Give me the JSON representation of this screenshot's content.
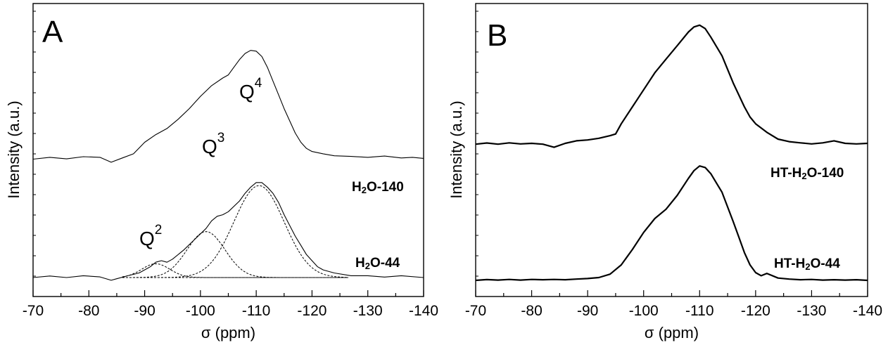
{
  "chart_data": [
    {
      "panel": "A",
      "type": "line",
      "xlabel": "σ (ppm)",
      "ylabel": "Intensity (a.u.)",
      "xlim": [
        -70,
        -140
      ],
      "x_ticks": [
        "-70",
        "-80",
        "-90",
        "-100",
        "-110",
        "-120",
        "-130",
        "-140"
      ],
      "series": [
        {
          "name_parts": [
            "H",
            "2",
            "O-140"
          ],
          "style": "thin-solid",
          "points": [
            [
              -70,
              0.25
            ],
            [
              -73,
              0.262
            ],
            [
              -76,
              0.252
            ],
            [
              -79,
              0.266
            ],
            [
              -82,
              0.262
            ],
            [
              -84,
              0.23
            ],
            [
              -86,
              0.258
            ],
            [
              -88,
              0.285
            ],
            [
              -90,
              0.36
            ],
            [
              -92,
              0.41
            ],
            [
              -94,
              0.45
            ],
            [
              -96,
              0.51
            ],
            [
              -98,
              0.58
            ],
            [
              -100,
              0.66
            ],
            [
              -102,
              0.73
            ],
            [
              -104,
              0.78
            ],
            [
              -105,
              0.8
            ],
            [
              -106,
              0.85
            ],
            [
              -107,
              0.9
            ],
            [
              -108,
              0.94
            ],
            [
              -109,
              0.96
            ],
            [
              -110,
              0.955
            ],
            [
              -111,
              0.92
            ],
            [
              -112,
              0.85
            ],
            [
              -113,
              0.76
            ],
            [
              -114,
              0.67
            ],
            [
              -115,
              0.58
            ],
            [
              -116,
              0.5
            ],
            [
              -117,
              0.42
            ],
            [
              -118,
              0.36
            ],
            [
              -119,
              0.32
            ],
            [
              -120,
              0.3
            ],
            [
              -122,
              0.285
            ],
            [
              -124,
              0.272
            ],
            [
              -127,
              0.268
            ],
            [
              -130,
              0.262
            ],
            [
              -133,
              0.27
            ],
            [
              -136,
              0.258
            ],
            [
              -138,
              0.262
            ],
            [
              -140,
              0.255
            ]
          ]
        },
        {
          "name_parts": [
            "H",
            "2",
            "O-44"
          ],
          "style": "thin-solid",
          "points": [
            [
              -70,
              0.0
            ],
            [
              -73,
              0.01
            ],
            [
              -76,
              0.0
            ],
            [
              -79,
              0.012
            ],
            [
              -82,
              0.004
            ],
            [
              -84,
              -0.018
            ],
            [
              -85,
              -0.008
            ],
            [
              -87,
              0.012
            ],
            [
              -89,
              0.03
            ],
            [
              -91,
              0.07
            ],
            [
              -92,
              0.1
            ],
            [
              -93,
              0.11
            ],
            [
              -94,
              0.1
            ],
            [
              -95,
              0.12
            ],
            [
              -97,
              0.18
            ],
            [
              -99,
              0.25
            ],
            [
              -101,
              0.32
            ],
            [
              -102,
              0.37
            ],
            [
              -103,
              0.4
            ],
            [
              -104,
              0.41
            ],
            [
              -105,
              0.43
            ],
            [
              -107,
              0.5
            ],
            [
              -108,
              0.55
            ],
            [
              -109,
              0.59
            ],
            [
              -110,
              0.62
            ],
            [
              -111,
              0.62
            ],
            [
              -112,
              0.59
            ],
            [
              -113,
              0.55
            ],
            [
              -114,
              0.49
            ],
            [
              -115,
              0.41
            ],
            [
              -116,
              0.34
            ],
            [
              -117,
              0.27
            ],
            [
              -118,
              0.21
            ],
            [
              -119,
              0.15
            ],
            [
              -120,
              0.11
            ],
            [
              -121,
              0.07
            ],
            [
              -122,
              0.05
            ],
            [
              -124,
              0.03
            ],
            [
              -127,
              0.012
            ],
            [
              -130,
              0.012
            ],
            [
              -133,
              0.003
            ],
            [
              -136,
              0.012
            ],
            [
              -140,
              0.0
            ]
          ]
        }
      ],
      "fit_components": [
        {
          "label": "Q",
          "sup": "2",
          "center": -92,
          "height": 0.09,
          "width": 2.5
        },
        {
          "label": "Q",
          "sup": "3",
          "center": -101,
          "height": 0.3,
          "width": 3.4
        },
        {
          "label": "Q",
          "sup": "4",
          "center": -110.5,
          "height": 0.6,
          "width": 4.5
        }
      ],
      "fit_range": [
        -86,
        -126.5
      ]
    },
    {
      "panel": "B",
      "type": "line",
      "xlabel": "σ (ppm)",
      "ylabel": "Intensity (a.u.)",
      "xlim": [
        -70,
        -140
      ],
      "x_ticks": [
        "-70",
        "-80",
        "-90",
        "-100",
        "-110",
        "-120",
        "-130",
        "-140"
      ],
      "series": [
        {
          "name_parts": [
            "HT-H",
            "2",
            "O-140"
          ],
          "style": "bold-solid",
          "points": [
            [
              -70,
              0.28
            ],
            [
              -72,
              0.287
            ],
            [
              -74,
              0.28
            ],
            [
              -76,
              0.288
            ],
            [
              -78,
              0.282
            ],
            [
              -80,
              0.285
            ],
            [
              -82,
              0.28
            ],
            [
              -84,
              0.262
            ],
            [
              -86,
              0.285
            ],
            [
              -88,
              0.3
            ],
            [
              -90,
              0.305
            ],
            [
              -92,
              0.315
            ],
            [
              -94,
              0.33
            ],
            [
              -95,
              0.34
            ],
            [
              -96,
              0.4
            ],
            [
              -98,
              0.5
            ],
            [
              -100,
              0.6
            ],
            [
              -102,
              0.7
            ],
            [
              -104,
              0.78
            ],
            [
              -106,
              0.86
            ],
            [
              -108,
              0.94
            ],
            [
              -109,
              0.97
            ],
            [
              -110,
              0.98
            ],
            [
              -111,
              0.96
            ],
            [
              -112,
              0.91
            ],
            [
              -114,
              0.8
            ],
            [
              -116,
              0.64
            ],
            [
              -118,
              0.5
            ],
            [
              -119,
              0.44
            ],
            [
              -120,
              0.4
            ],
            [
              -122,
              0.35
            ],
            [
              -124,
              0.31
            ],
            [
              -126,
              0.295
            ],
            [
              -128,
              0.288
            ],
            [
              -130,
              0.282
            ],
            [
              -132,
              0.288
            ],
            [
              -134,
              0.3
            ],
            [
              -136,
              0.285
            ],
            [
              -138,
              0.282
            ],
            [
              -140,
              0.285
            ]
          ]
        },
        {
          "name_parts": [
            "HT-H",
            "2",
            "O-44"
          ],
          "style": "bold-solid",
          "points": [
            [
              -70,
              0.0
            ],
            [
              -72,
              0.005
            ],
            [
              -74,
              0.002
            ],
            [
              -76,
              0.006
            ],
            [
              -78,
              0.002
            ],
            [
              -80,
              0.006
            ],
            [
              -82,
              0.004
            ],
            [
              -84,
              0.006
            ],
            [
              -86,
              0.004
            ],
            [
              -88,
              0.008
            ],
            [
              -90,
              0.012
            ],
            [
              -92,
              0.018
            ],
            [
              -94,
              0.04
            ],
            [
              -96,
              0.1
            ],
            [
              -98,
              0.2
            ],
            [
              -100,
              0.31
            ],
            [
              -102,
              0.4
            ],
            [
              -104,
              0.46
            ],
            [
              -106,
              0.55
            ],
            [
              -108,
              0.66
            ],
            [
              -109,
              0.71
            ],
            [
              -110,
              0.74
            ],
            [
              -111,
              0.73
            ],
            [
              -112,
              0.69
            ],
            [
              -114,
              0.57
            ],
            [
              -116,
              0.38
            ],
            [
              -117,
              0.28
            ],
            [
              -118,
              0.18
            ],
            [
              -119,
              0.1
            ],
            [
              -120,
              0.05
            ],
            [
              -121,
              0.03
            ],
            [
              -122,
              0.045
            ],
            [
              -124,
              0.015
            ],
            [
              -126,
              0.008
            ],
            [
              -128,
              0.004
            ],
            [
              -130,
              0.006
            ],
            [
              -132,
              0.002
            ],
            [
              -134,
              0.004
            ],
            [
              -136,
              0.002
            ],
            [
              -138,
              0.004
            ],
            [
              -140,
              0.0
            ]
          ]
        }
      ]
    }
  ]
}
